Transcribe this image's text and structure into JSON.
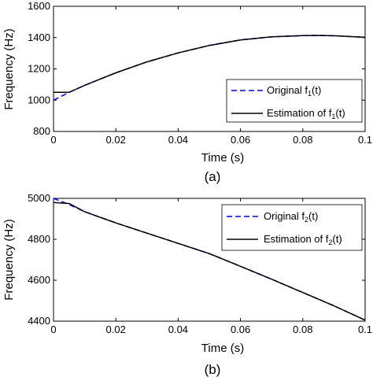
{
  "chart_data": [
    {
      "type": "line",
      "caption": "(a)",
      "xlabel": "Time (s)",
      "ylabel": "Frequency (Hz)",
      "xlim": [
        0,
        0.1
      ],
      "ylim": [
        800,
        1600
      ],
      "xticks": [
        "0",
        "0.02",
        "0.04",
        "0.06",
        "0.08",
        "0.1"
      ],
      "yticks": [
        "800",
        "1000",
        "1200",
        "1400",
        "1600"
      ],
      "legend_position": "lower-right",
      "series": [
        {
          "name": "Original f1(t)",
          "style": "dashed",
          "color": "#0000ff",
          "x": [
            0,
            0.005,
            0.01,
            0.02,
            0.03,
            0.04,
            0.05,
            0.06,
            0.07,
            0.08,
            0.085,
            0.09,
            0.1
          ],
          "y": [
            1000,
            1050,
            1095,
            1175,
            1245,
            1302,
            1350,
            1385,
            1405,
            1413,
            1414,
            1412,
            1402
          ]
        },
        {
          "name": "Estimation of f1(t)",
          "style": "solid",
          "color": "#000000",
          "x": [
            0,
            0.005,
            0.01,
            0.02,
            0.03,
            0.04,
            0.05,
            0.06,
            0.07,
            0.08,
            0.085,
            0.09,
            0.1
          ],
          "y": [
            1050,
            1050,
            1095,
            1175,
            1245,
            1302,
            1350,
            1385,
            1405,
            1413,
            1414,
            1412,
            1402
          ]
        }
      ]
    },
    {
      "type": "line",
      "caption": "(b)",
      "xlabel": "Time (s)",
      "ylabel": "Frequency (Hz)",
      "xlim": [
        0,
        0.1
      ],
      "ylim": [
        4400,
        5000
      ],
      "xticks": [
        "0",
        "0.02",
        "0.04",
        "0.06",
        "0.08",
        "0.1"
      ],
      "yticks": [
        "4400",
        "4600",
        "4800",
        "5000"
      ],
      "legend_position": "top-right",
      "series": [
        {
          "name": "Original f2(t)",
          "style": "dashed",
          "color": "#0000ff",
          "x": [
            0,
            0.005,
            0.01,
            0.02,
            0.03,
            0.04,
            0.05,
            0.06,
            0.07,
            0.08,
            0.09,
            0.1
          ],
          "y": [
            5000,
            4970,
            4935,
            4880,
            4830,
            4780,
            4730,
            4668,
            4605,
            4540,
            4475,
            4405
          ]
        },
        {
          "name": "Estimation of f2(t)",
          "style": "solid",
          "color": "#000000",
          "x": [
            0,
            0.005,
            0.01,
            0.02,
            0.03,
            0.04,
            0.05,
            0.06,
            0.07,
            0.08,
            0.09,
            0.1
          ],
          "y": [
            4980,
            4975,
            4935,
            4880,
            4830,
            4780,
            4730,
            4668,
            4605,
            4540,
            4475,
            4405
          ]
        }
      ]
    }
  ]
}
